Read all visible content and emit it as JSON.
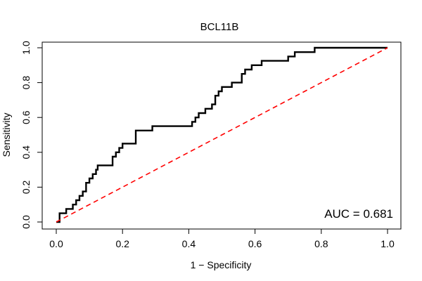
{
  "chart_data": {
    "type": "line",
    "title": "BCL11B",
    "xlabel": "1 − Specificity",
    "ylabel": "Sensitivity",
    "xlim": [
      0.0,
      1.0
    ],
    "ylim": [
      0.0,
      1.0
    ],
    "x_ticks": [
      0.0,
      0.2,
      0.4,
      0.6,
      0.8,
      1.0
    ],
    "y_ticks": [
      0.0,
      0.2,
      0.4,
      0.6,
      0.8,
      1.0
    ],
    "x_tick_labels": [
      "0.0",
      "0.2",
      "0.4",
      "0.6",
      "0.8",
      "1.0"
    ],
    "y_tick_labels": [
      "0.0",
      "0.2",
      "0.4",
      "0.6",
      "0.8",
      "1.0"
    ],
    "grid": false,
    "annotation": "AUC = 0.681",
    "series": [
      {
        "style": "solid",
        "color": "#000000",
        "x": [
          0.0,
          0.01,
          0.01,
          0.03,
          0.03,
          0.05,
          0.05,
          0.06,
          0.06,
          0.07,
          0.07,
          0.08,
          0.08,
          0.09,
          0.09,
          0.1,
          0.1,
          0.11,
          0.11,
          0.12,
          0.12,
          0.125,
          0.125,
          0.13,
          0.13,
          0.17,
          0.17,
          0.18,
          0.18,
          0.19,
          0.19,
          0.2,
          0.2,
          0.24,
          0.24,
          0.29,
          0.29,
          0.41,
          0.41,
          0.42,
          0.42,
          0.43,
          0.43,
          0.45,
          0.45,
          0.47,
          0.47,
          0.48,
          0.48,
          0.49,
          0.49,
          0.5,
          0.5,
          0.53,
          0.53,
          0.56,
          0.56,
          0.57,
          0.57,
          0.58,
          0.58,
          0.59,
          0.59,
          0.6,
          0.6,
          0.62,
          0.62,
          0.64,
          0.64,
          0.7,
          0.7,
          0.72,
          0.72,
          0.78,
          0.78,
          1.0
        ],
        "y": [
          0.0,
          0.0,
          0.05,
          0.05,
          0.075,
          0.075,
          0.1,
          0.1,
          0.125,
          0.125,
          0.15,
          0.15,
          0.175,
          0.175,
          0.225,
          0.225,
          0.25,
          0.25,
          0.275,
          0.275,
          0.3,
          0.3,
          0.325,
          0.325,
          0.325,
          0.325,
          0.375,
          0.375,
          0.4,
          0.4,
          0.425,
          0.425,
          0.45,
          0.45,
          0.525,
          0.525,
          0.55,
          0.55,
          0.575,
          0.575,
          0.6,
          0.6,
          0.625,
          0.625,
          0.65,
          0.65,
          0.675,
          0.675,
          0.725,
          0.725,
          0.75,
          0.75,
          0.775,
          0.775,
          0.8,
          0.8,
          0.85,
          0.85,
          0.875,
          0.875,
          0.875,
          0.875,
          0.9,
          0.9,
          0.9,
          0.9,
          0.925,
          0.925,
          0.925,
          0.925,
          0.95,
          0.95,
          0.975,
          0.975,
          1.0,
          1.0
        ]
      },
      {
        "style": "dashed",
        "color": "#ff0000",
        "x": [
          0.0,
          1.0
        ],
        "y": [
          0.0,
          1.0
        ]
      }
    ]
  }
}
